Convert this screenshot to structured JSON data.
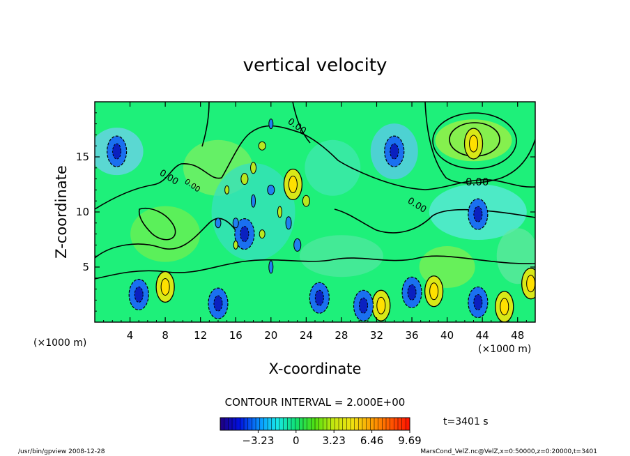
{
  "chart_data": {
    "type": "heatmap",
    "title": "vertical velocity",
    "xlabel": "X-coordinate",
    "ylabel": "Z-coordinate",
    "x_unit": "(×1000 m)",
    "y_unit": "(×1000 m)",
    "xlim": [
      0,
      50
    ],
    "ylim": [
      0,
      20
    ],
    "x_ticks": [
      4,
      8,
      12,
      16,
      20,
      24,
      28,
      32,
      36,
      40,
      44,
      48
    ],
    "y_ticks": [
      5,
      10,
      15
    ],
    "contour_labels": [
      "0.00",
      "0.00",
      "0.00",
      "0.00",
      "0.00"
    ],
    "contour_interval_text": "CONTOUR INTERVAL = 2.000E+00",
    "colorbar": {
      "range": [
        -6.46,
        9.69
      ],
      "tick_values": [
        -3.23,
        0,
        3.23,
        6.46,
        9.69
      ],
      "tick_labels": [
        "−3.23",
        "0",
        "3.23",
        "6.46",
        "9.69"
      ]
    },
    "time_label": "t=3401 s",
    "features": {
      "positive_cores": [
        [
          8,
          3.2
        ],
        [
          38.5,
          2.8
        ],
        [
          43,
          16.2
        ],
        [
          32.5,
          1.5
        ],
        [
          46.5,
          1.4
        ],
        [
          49.5,
          3.5
        ],
        [
          22.5,
          12.5
        ]
      ],
      "negative_cores": [
        [
          5,
          2.5
        ],
        [
          25.5,
          2.2
        ],
        [
          14,
          1.7
        ],
        [
          30.5,
          1.5
        ],
        [
          36,
          2.7
        ],
        [
          43.5,
          1.8
        ],
        [
          2.5,
          15.5
        ],
        [
          34,
          15.5
        ],
        [
          43.5,
          9.8
        ],
        [
          17,
          8
        ]
      ]
    }
  },
  "footer": {
    "left": "/usr/bin/gpview   2008-12-28",
    "right": "MarsCond_VelZ.nc@VelZ,x=0:50000,z=0:20000,t=3401"
  },
  "colors": {
    "background": "#1ef07a",
    "negative_max": "#0b00a8",
    "positive_max": "#ff0000"
  }
}
